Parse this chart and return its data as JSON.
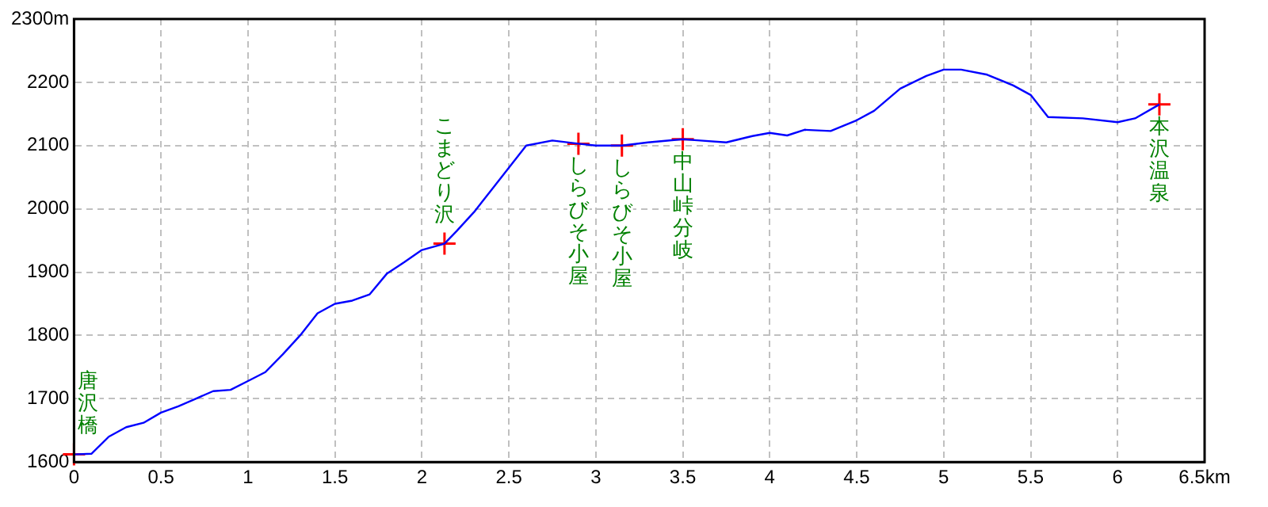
{
  "chart_data": {
    "type": "line",
    "xlim": [
      0,
      6.5
    ],
    "ylim": [
      1600,
      2300
    ],
    "xticks": [
      0,
      0.5,
      1,
      1.5,
      2,
      2.5,
      3,
      3.5,
      4,
      4.5,
      5,
      5.5,
      6,
      {
        "value": 6.5,
        "label": "6.5km"
      }
    ],
    "yticks": [
      1600,
      1700,
      1800,
      1900,
      2000,
      2100,
      2200,
      {
        "value": 2300,
        "label": "2300m"
      }
    ],
    "grid": true,
    "series": [
      {
        "type": "line",
        "color": "#0000ff",
        "line_style": "solid",
        "x": [
          0,
          0.1,
          0.2,
          0.3,
          0.4,
          0.5,
          0.6,
          0.7,
          0.8,
          0.9,
          1.0,
          1.1,
          1.2,
          1.3,
          1.4,
          1.5,
          1.6,
          1.7,
          1.8,
          1.9,
          2.0,
          2.13,
          2.2,
          2.3,
          2.4,
          2.5,
          2.6,
          2.75,
          2.9,
          3.0,
          3.15,
          3.3,
          3.5,
          3.6,
          3.75,
          3.9,
          4.0,
          4.1,
          4.2,
          4.35,
          4.5,
          4.6,
          4.75,
          4.9,
          5.0,
          5.1,
          5.25,
          5.4,
          5.5,
          5.6,
          5.8,
          6.0,
          6.1,
          6.24
        ],
        "values": [
          1612,
          1613,
          1640,
          1655,
          1662,
          1678,
          1688,
          1700,
          1712,
          1714,
          1728,
          1742,
          1770,
          1800,
          1835,
          1850,
          1855,
          1865,
          1898,
          1916,
          1935,
          1945,
          1965,
          1995,
          2030,
          2065,
          2100,
          2108,
          2103,
          2100,
          2100,
          2105,
          2110,
          2108,
          2105,
          2115,
          2120,
          2116,
          2125,
          2123,
          2140,
          2155,
          2190,
          2210,
          2220,
          2220,
          2212,
          2195,
          2180,
          2145,
          2143,
          2137,
          2143,
          2165
        ]
      },
      {
        "type": "scatter",
        "color": "#ff0000",
        "marker": "cross",
        "x": [
          0,
          2.13,
          2.9,
          3.15,
          3.5,
          6.24
        ],
        "values": [
          1612,
          1945,
          2103,
          2100,
          2110,
          2165
        ]
      }
    ],
    "annotations": [
      {
        "text": "唐沢橋",
        "x": 0,
        "y": 1612
      },
      {
        "text": "こまどり沢",
        "x": 2.13,
        "y": 1945
      },
      {
        "text": "しらびそ小屋",
        "x": 2.9,
        "y": 2103
      },
      {
        "text": "しらびそ小屋",
        "x": 3.15,
        "y": 2100
      },
      {
        "text": "中山峠分岐",
        "x": 3.5,
        "y": 2110
      },
      {
        "text": "本沢温泉",
        "x": 6.24,
        "y": 2165
      }
    ]
  }
}
